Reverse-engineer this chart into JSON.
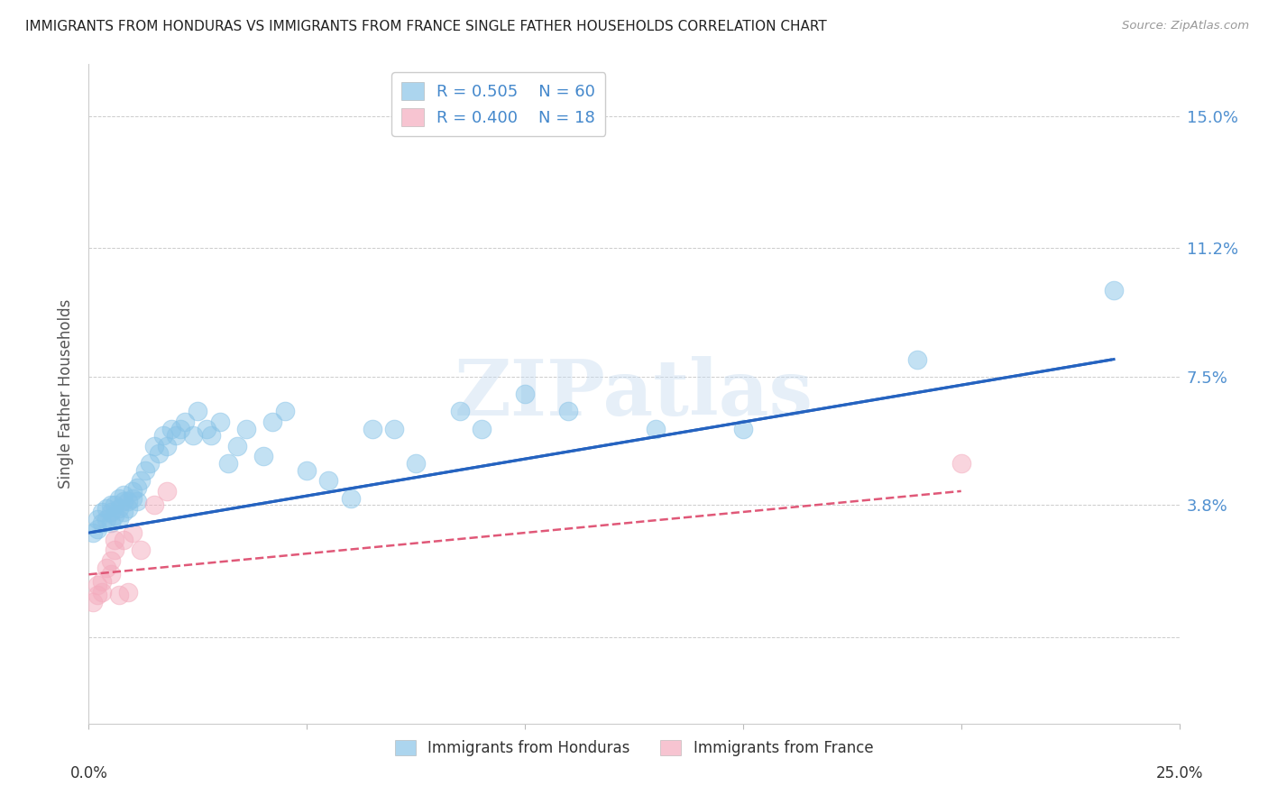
{
  "title": "IMMIGRANTS FROM HONDURAS VS IMMIGRANTS FROM FRANCE SINGLE FATHER HOUSEHOLDS CORRELATION CHART",
  "source": "Source: ZipAtlas.com",
  "ylabel": "Single Father Households",
  "ytick_labels": [
    "",
    "3.8%",
    "7.5%",
    "11.2%",
    "15.0%"
  ],
  "ytick_values": [
    0.0,
    0.038,
    0.075,
    0.112,
    0.15
  ],
  "xlim": [
    0.0,
    0.25
  ],
  "ylim": [
    -0.025,
    0.165
  ],
  "legend_R1": "0.505",
  "legend_N1": "60",
  "legend_R2": "0.400",
  "legend_N2": "18",
  "color_honduras": "#89C4E8",
  "color_france": "#F4ACBE",
  "color_trendline_honduras": "#2563C0",
  "color_trendline_france": "#E05878",
  "watermark_text": "ZIPatlas",
  "honduras_x": [
    0.001,
    0.002,
    0.002,
    0.003,
    0.003,
    0.004,
    0.004,
    0.005,
    0.005,
    0.005,
    0.006,
    0.006,
    0.007,
    0.007,
    0.007,
    0.008,
    0.008,
    0.008,
    0.009,
    0.009,
    0.01,
    0.01,
    0.011,
    0.011,
    0.012,
    0.013,
    0.014,
    0.015,
    0.016,
    0.017,
    0.018,
    0.019,
    0.02,
    0.021,
    0.022,
    0.024,
    0.025,
    0.027,
    0.028,
    0.03,
    0.032,
    0.034,
    0.036,
    0.04,
    0.042,
    0.045,
    0.05,
    0.055,
    0.06,
    0.065,
    0.07,
    0.075,
    0.085,
    0.09,
    0.1,
    0.11,
    0.13,
    0.15,
    0.19,
    0.235
  ],
  "honduras_y": [
    0.03,
    0.031,
    0.034,
    0.033,
    0.036,
    0.034,
    0.037,
    0.033,
    0.036,
    0.038,
    0.035,
    0.038,
    0.034,
    0.037,
    0.04,
    0.036,
    0.039,
    0.041,
    0.037,
    0.039,
    0.04,
    0.042,
    0.039,
    0.043,
    0.045,
    0.048,
    0.05,
    0.055,
    0.053,
    0.058,
    0.055,
    0.06,
    0.058,
    0.06,
    0.062,
    0.058,
    0.065,
    0.06,
    0.058,
    0.062,
    0.05,
    0.055,
    0.06,
    0.052,
    0.062,
    0.065,
    0.048,
    0.045,
    0.04,
    0.06,
    0.06,
    0.05,
    0.065,
    0.06,
    0.07,
    0.065,
    0.06,
    0.06,
    0.08,
    0.1
  ],
  "france_x": [
    0.001,
    0.002,
    0.002,
    0.003,
    0.003,
    0.004,
    0.005,
    0.005,
    0.006,
    0.006,
    0.007,
    0.008,
    0.009,
    0.01,
    0.012,
    0.015,
    0.018,
    0.2
  ],
  "france_y": [
    0.01,
    0.012,
    0.015,
    0.013,
    0.016,
    0.02,
    0.018,
    0.022,
    0.025,
    0.028,
    0.012,
    0.028,
    0.013,
    0.03,
    0.025,
    0.038,
    0.042,
    0.05
  ],
  "trendline_honduras_x0": 0.0,
  "trendline_honduras_y0": 0.03,
  "trendline_honduras_x1": 0.235,
  "trendline_honduras_y1": 0.08,
  "trendline_france_x0": 0.0,
  "trendline_france_y0": 0.018,
  "trendline_france_x1": 0.2,
  "trendline_france_y1": 0.042
}
